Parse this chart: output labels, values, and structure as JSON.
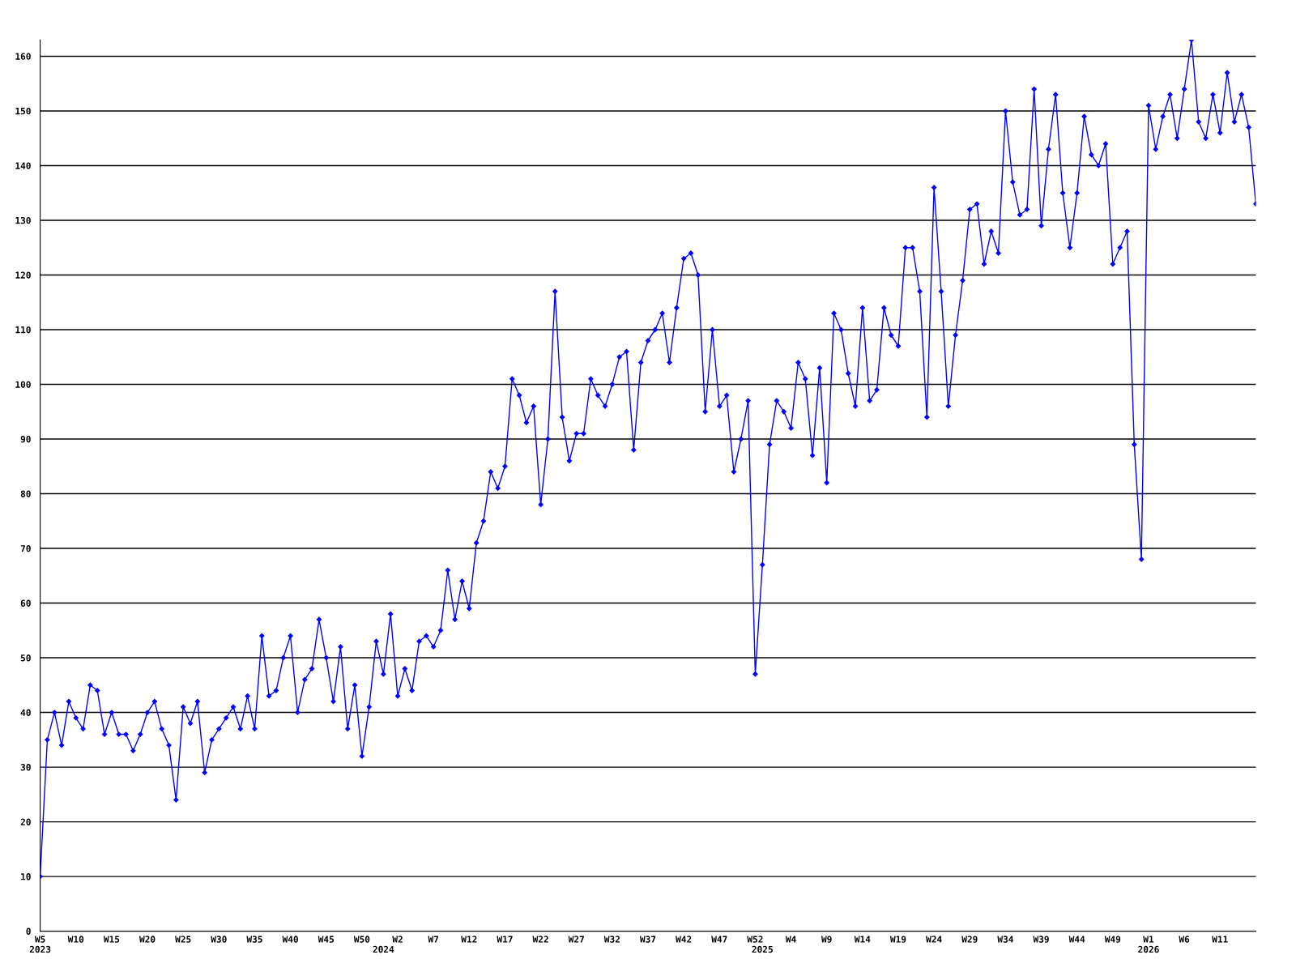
{
  "chart_data": {
    "type": "line",
    "categories": [
      "W5\n2023",
      null,
      null,
      null,
      null,
      "W10",
      null,
      null,
      null,
      null,
      "W15",
      null,
      null,
      null,
      null,
      "W20",
      null,
      null,
      null,
      null,
      "W25",
      null,
      null,
      null,
      null,
      "W30",
      null,
      null,
      null,
      null,
      "W35",
      null,
      null,
      null,
      null,
      "W40",
      null,
      null,
      null,
      null,
      "W45",
      null,
      null,
      null,
      null,
      "W50",
      null,
      null,
      "\n2024",
      null,
      "W2",
      null,
      null,
      null,
      null,
      "W7",
      null,
      null,
      null,
      null,
      "W12",
      null,
      null,
      null,
      null,
      "W17",
      null,
      null,
      null,
      null,
      "W22",
      null,
      null,
      null,
      null,
      "W27",
      null,
      null,
      null,
      null,
      "W32",
      null,
      null,
      null,
      null,
      "W37",
      null,
      null,
      null,
      null,
      "W42",
      null,
      null,
      null,
      null,
      "W47",
      null,
      null,
      null,
      null,
      "W52",
      "\n2025",
      null,
      null,
      null,
      "W4",
      null,
      null,
      null,
      null,
      "W9",
      null,
      null,
      null,
      null,
      "W14",
      null,
      null,
      null,
      null,
      "W19",
      null,
      null,
      null,
      null,
      "W24",
      null,
      null,
      null,
      null,
      "W29",
      null,
      null,
      null,
      null,
      "W34",
      null,
      null,
      null,
      null,
      "W39",
      null,
      null,
      null,
      null,
      "W44",
      null,
      null,
      null,
      null,
      "W49",
      null,
      null,
      null,
      null,
      "W1\n2026",
      null,
      null,
      null,
      null,
      "W6",
      null,
      null,
      null,
      null,
      "W11",
      null,
      null,
      null,
      null,
      null
    ],
    "series": [
      {
        "color": "#0000ff",
        "values": [
          10,
          35,
          40,
          34,
          42,
          39,
          37,
          45,
          44,
          36,
          40,
          36,
          36,
          33,
          36,
          40,
          42,
          37,
          34,
          24,
          41,
          38,
          42,
          29,
          35,
          37,
          39,
          41,
          37,
          43,
          37,
          54,
          43,
          44,
          50,
          54,
          40,
          46,
          48,
          57,
          50,
          42,
          52,
          37,
          45,
          32,
          41,
          53,
          47,
          58,
          43,
          48,
          44,
          53,
          54,
          52,
          55,
          66,
          57,
          64,
          59,
          71,
          75,
          84,
          81,
          85,
          101,
          98,
          93,
          96,
          78,
          90,
          117,
          94,
          86,
          91,
          91,
          101,
          98,
          96,
          100,
          105,
          106,
          88,
          104,
          108,
          110,
          113,
          104,
          114,
          123,
          124,
          120,
          95,
          110,
          96,
          98,
          84,
          90,
          97,
          47,
          67,
          89,
          97,
          95,
          92,
          104,
          101,
          87,
          103,
          82,
          113,
          110,
          102,
          96,
          114,
          97,
          99,
          114,
          109,
          107,
          125,
          125,
          117,
          94,
          136,
          117,
          96,
          109,
          119,
          132,
          133,
          122,
          128,
          124,
          150,
          137,
          131,
          132,
          154,
          129,
          143,
          153,
          135,
          125,
          135,
          149,
          142,
          140,
          144,
          122,
          125,
          128,
          89,
          68,
          151,
          143,
          149,
          153,
          145,
          154,
          163,
          148,
          145,
          153,
          146,
          157,
          148,
          153,
          147,
          133
        ]
      }
    ],
    "ylim": [
      0,
      163
    ],
    "yticks": [
      0,
      10,
      20,
      30,
      40,
      50,
      60,
      70,
      80,
      90,
      100,
      110,
      120,
      130,
      140,
      150,
      160
    ],
    "grid": "y",
    "marker": "diamond",
    "line_style": "solid"
  }
}
